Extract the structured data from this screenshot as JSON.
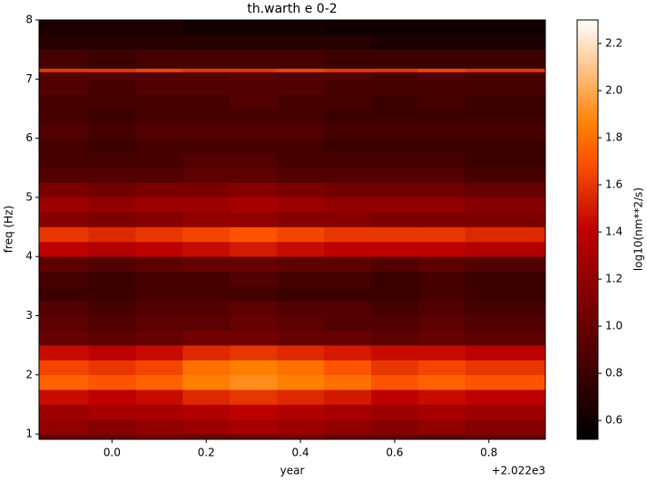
{
  "chart_data": {
    "type": "heatmap",
    "title": "th.warth e 0-2",
    "x_label": "year",
    "y_label": "freq (Hz)",
    "colorbar_label": "log10(nm**2/s)",
    "x_offset_label": "+2.022e3",
    "colormap": "gist_heat",
    "xlim": [
      -0.155,
      0.92
    ],
    "xticks": [
      {
        "value": 0,
        "label": "0.0"
      },
      0.2,
      0.4,
      0.6,
      0.8
    ],
    "ylim": [
      0.91,
      8
    ],
    "yticks": [
      1,
      2,
      3,
      4,
      5,
      6,
      7,
      8
    ],
    "clim": [
      0.52,
      2.3
    ],
    "cticks": [
      0.6,
      0.8,
      {
        "value": 1,
        "label": "1.0"
      },
      1.2,
      1.4,
      1.6,
      1.8,
      {
        "value": 2,
        "label": "2.0"
      },
      2.2
    ],
    "x_bins": [
      -0.155,
      -0.05,
      0.05,
      0.15,
      0.25,
      0.35,
      0.45,
      0.55,
      0.65,
      0.75,
      0.92
    ],
    "y_bins": [
      0.91,
      1.0,
      1.25,
      1.5,
      1.75,
      2.0,
      2.25,
      2.5,
      2.75,
      3.0,
      3.25,
      3.5,
      3.75,
      4.0,
      4.25,
      4.5,
      4.75,
      5.0,
      5.25,
      5.5,
      5.75,
      6.0,
      6.25,
      6.5,
      6.75,
      7.0,
      7.12,
      7.18,
      7.5,
      7.75,
      8.0
    ],
    "z": [
      [
        1.0,
        1.0,
        1.05,
        1.0,
        1.0,
        1.05,
        1.0,
        1.0,
        0.95,
        1.0
      ],
      [
        1.2,
        1.15,
        1.2,
        1.25,
        1.3,
        1.25,
        1.2,
        1.15,
        1.2,
        1.15
      ],
      [
        1.25,
        1.3,
        1.3,
        1.35,
        1.4,
        1.35,
        1.3,
        1.25,
        1.3,
        1.25
      ],
      [
        1.45,
        1.4,
        1.45,
        1.55,
        1.6,
        1.55,
        1.5,
        1.4,
        1.45,
        1.4
      ],
      [
        1.75,
        1.7,
        1.75,
        1.85,
        1.9,
        1.85,
        1.8,
        1.7,
        1.75,
        1.7
      ],
      [
        1.65,
        1.6,
        1.65,
        1.8,
        1.85,
        1.8,
        1.7,
        1.6,
        1.65,
        1.6
      ],
      [
        1.45,
        1.4,
        1.45,
        1.55,
        1.6,
        1.55,
        1.5,
        1.45,
        1.45,
        1.4
      ],
      [
        1.0,
        0.95,
        1.0,
        1.05,
        1.05,
        1.0,
        1.0,
        0.95,
        1.0,
        0.95
      ],
      [
        0.95,
        0.9,
        0.95,
        0.95,
        1.0,
        0.95,
        0.9,
        0.9,
        0.95,
        0.9
      ],
      [
        0.9,
        0.85,
        0.9,
        0.9,
        0.95,
        0.9,
        0.9,
        0.85,
        0.9,
        0.85
      ],
      [
        0.8,
        0.8,
        0.85,
        0.85,
        0.85,
        0.8,
        0.8,
        0.8,
        0.85,
        0.8
      ],
      [
        0.85,
        0.8,
        0.85,
        0.85,
        0.9,
        0.85,
        0.85,
        0.8,
        0.85,
        0.8
      ],
      [
        0.95,
        0.9,
        0.95,
        1.0,
        1.0,
        0.95,
        0.95,
        0.9,
        0.95,
        0.9
      ],
      [
        1.4,
        1.35,
        1.4,
        1.45,
        1.5,
        1.45,
        1.4,
        1.4,
        1.4,
        1.35
      ],
      [
        1.6,
        1.55,
        1.6,
        1.65,
        1.7,
        1.65,
        1.6,
        1.6,
        1.6,
        1.55
      ],
      [
        1.15,
        1.1,
        1.15,
        1.2,
        1.2,
        1.15,
        1.15,
        1.1,
        1.1,
        1.1
      ],
      [
        1.25,
        1.2,
        1.25,
        1.25,
        1.3,
        1.25,
        1.2,
        1.2,
        1.2,
        1.15
      ],
      [
        1.1,
        1.05,
        1.1,
        1.1,
        1.15,
        1.1,
        1.05,
        1.05,
        1.05,
        1.0
      ],
      [
        0.9,
        0.9,
        0.9,
        0.95,
        0.95,
        0.9,
        0.9,
        0.9,
        0.9,
        0.85
      ],
      [
        0.85,
        0.85,
        0.85,
        0.9,
        0.9,
        0.85,
        0.85,
        0.85,
        0.85,
        0.8
      ],
      [
        0.85,
        0.8,
        0.85,
        0.85,
        0.85,
        0.85,
        0.8,
        0.8,
        0.8,
        0.8
      ],
      [
        0.9,
        0.85,
        0.9,
        0.9,
        0.9,
        0.9,
        0.85,
        0.85,
        0.85,
        0.85
      ],
      [
        0.85,
        0.8,
        0.85,
        0.85,
        0.85,
        0.85,
        0.8,
        0.8,
        0.8,
        0.8
      ],
      [
        0.85,
        0.85,
        0.85,
        0.85,
        0.9,
        0.85,
        0.85,
        0.8,
        0.85,
        0.8
      ],
      [
        0.9,
        0.85,
        0.9,
        0.9,
        0.9,
        0.9,
        0.85,
        0.85,
        0.85,
        0.85
      ],
      [
        0.9,
        0.9,
        0.9,
        0.9,
        0.95,
        0.9,
        0.9,
        0.85,
        0.9,
        0.85
      ],
      [
        1.6,
        1.6,
        1.65,
        1.6,
        1.6,
        1.65,
        1.6,
        1.6,
        1.65,
        1.6
      ],
      [
        0.85,
        0.8,
        0.85,
        0.85,
        0.85,
        0.85,
        0.8,
        0.8,
        0.8,
        0.8
      ],
      [
        0.7,
        0.7,
        0.7,
        0.7,
        0.7,
        0.7,
        0.7,
        0.65,
        0.65,
        0.65
      ],
      [
        0.65,
        0.65,
        0.65,
        0.62,
        0.62,
        0.62,
        0.6,
        0.6,
        0.6,
        0.6
      ]
    ]
  }
}
